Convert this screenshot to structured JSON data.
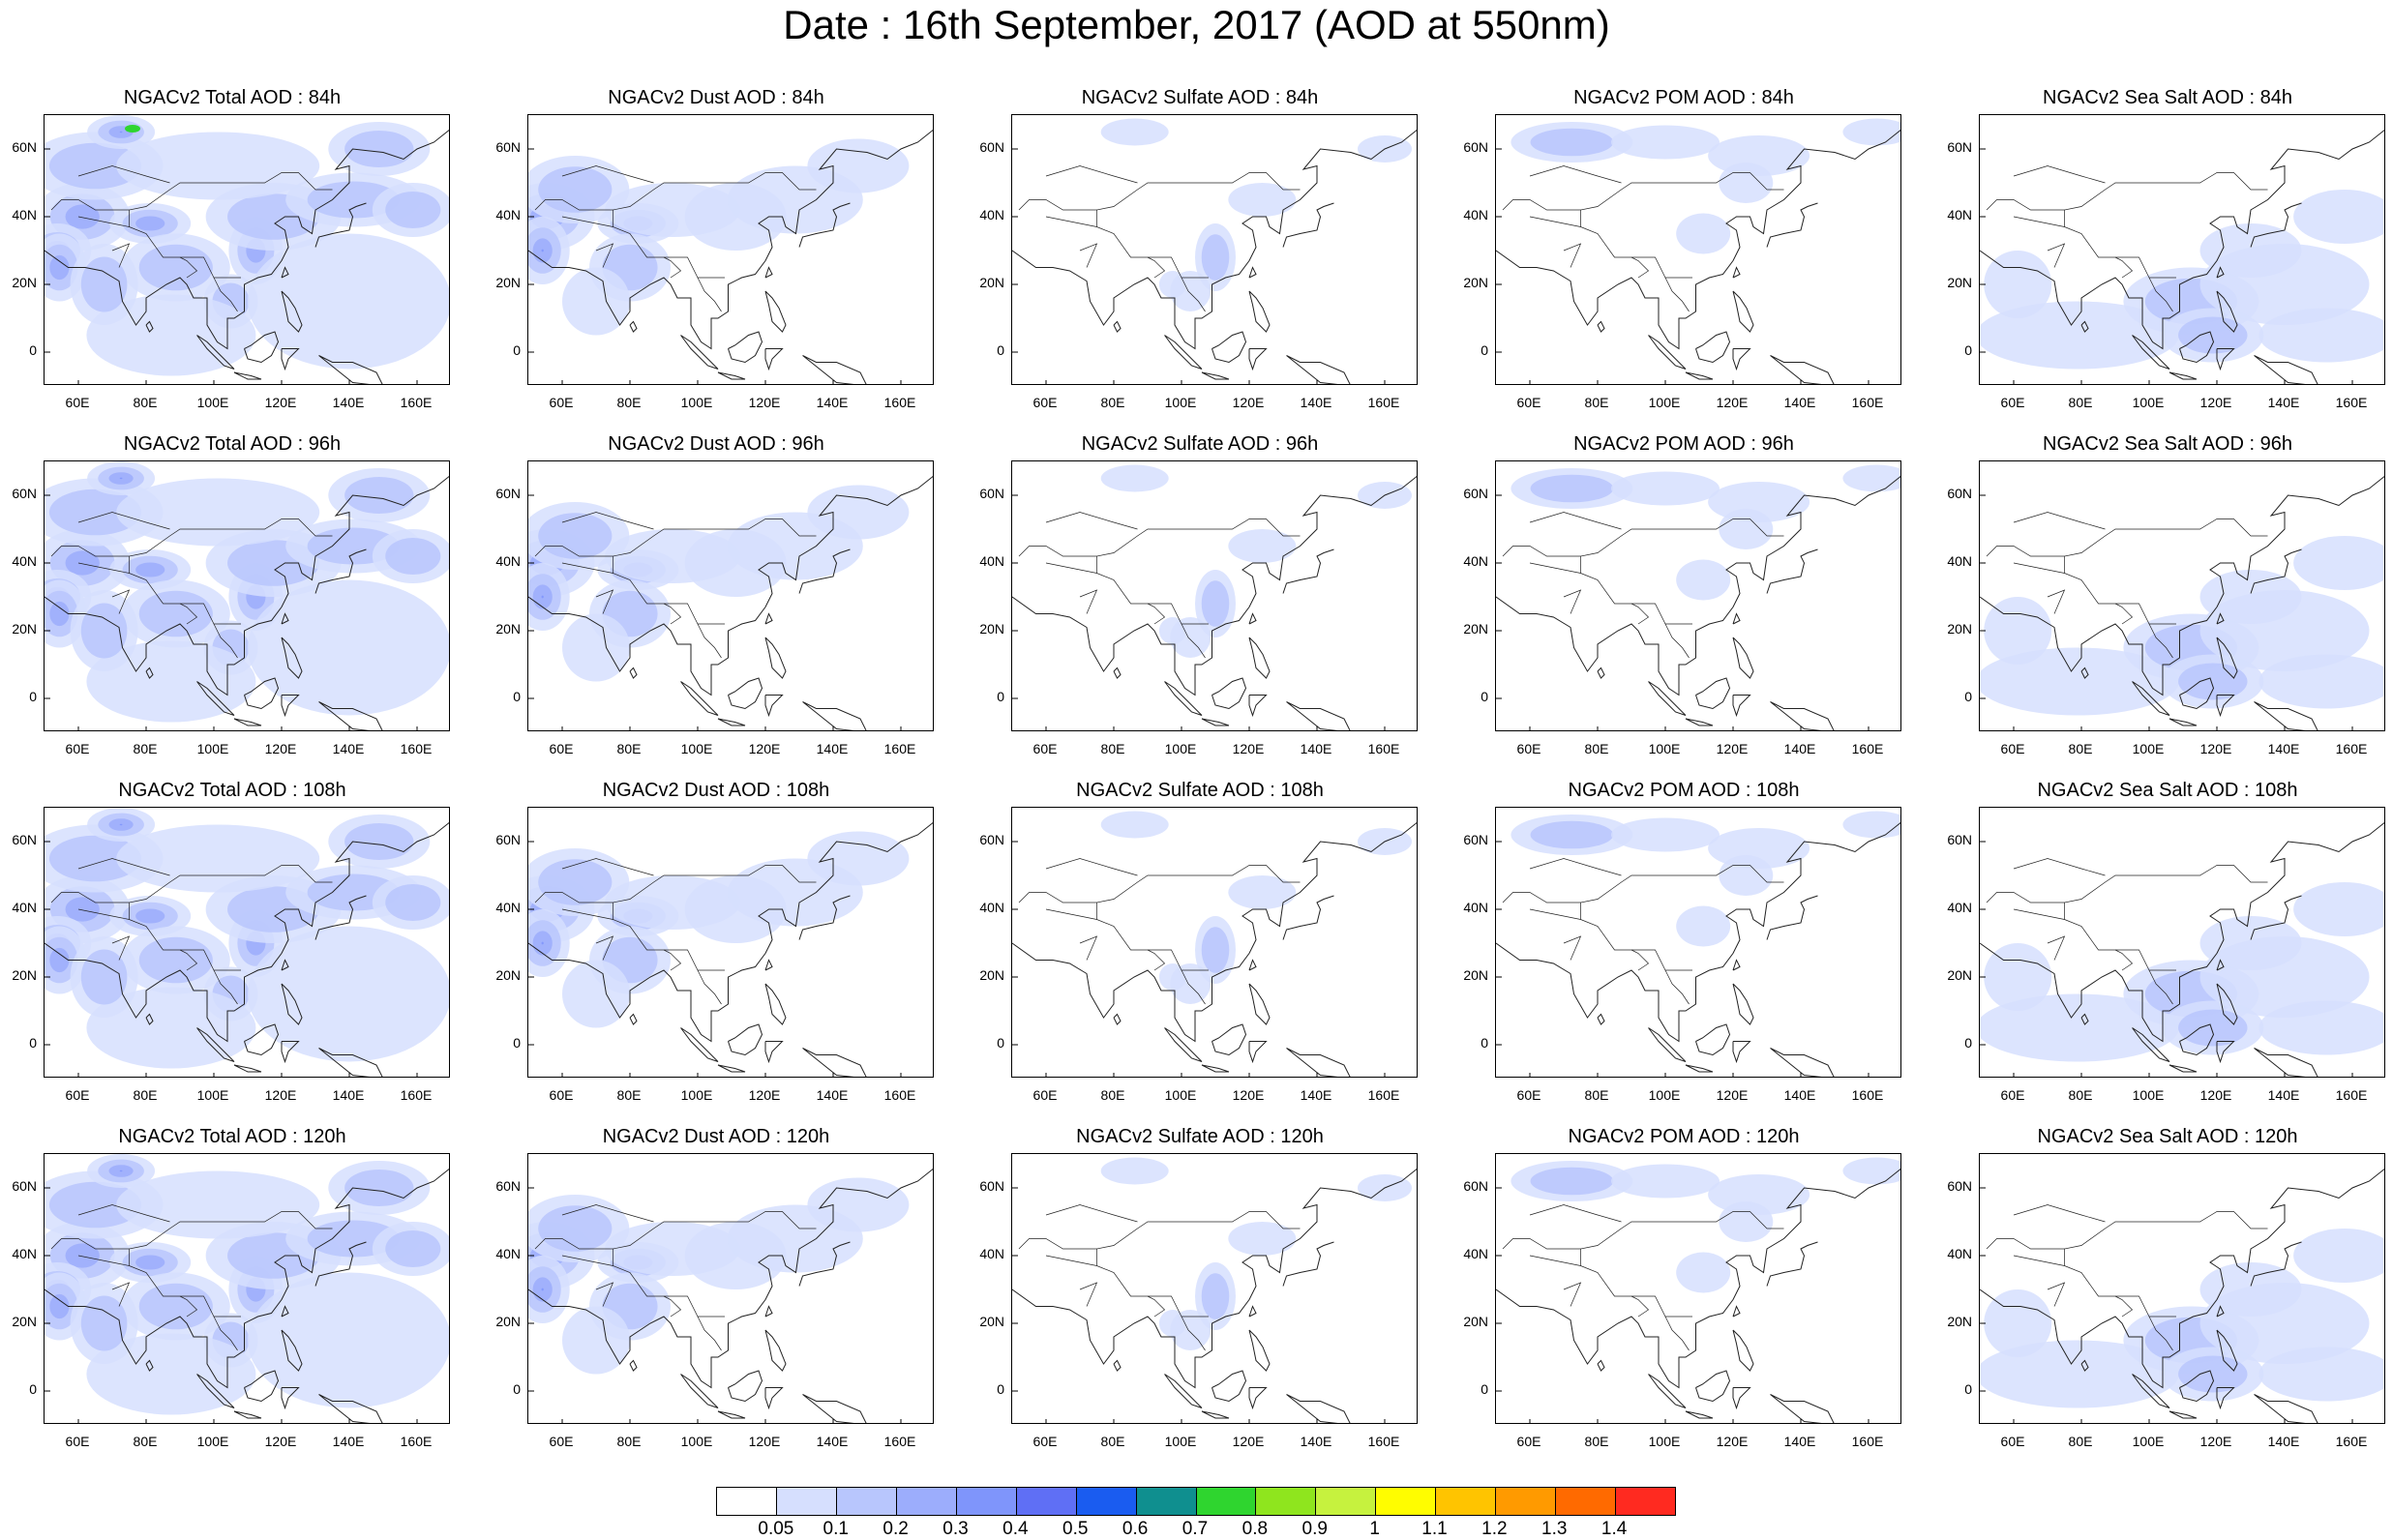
{
  "title": "Date : 16th September, 2017 (AOD at 550nm)",
  "y_axis_labels": [
    "60N",
    "40N",
    "20N",
    "0"
  ],
  "x_axis_labels": [
    "60E",
    "80E",
    "100E",
    "120E",
    "140E",
    "160E"
  ],
  "colorbar": {
    "colors": [
      "#ffffff",
      "#d6dffe",
      "#b8c6fd",
      "#9cadfc",
      "#7f95fb",
      "#5f6ff5",
      "#1a5cf0",
      "#0f8f8f",
      "#2fd52f",
      "#8fe51e",
      "#c6f23e",
      "#fffd00",
      "#ffc400",
      "#ff9a00",
      "#ff6a00",
      "#ff2a20"
    ],
    "labels": [
      "0.05",
      "0.1",
      "0.2",
      "0.3",
      "0.4",
      "0.5",
      "0.6",
      "0.7",
      "0.8",
      "0.9",
      "1",
      "1.1",
      "1.2",
      "1.3",
      "1.4"
    ]
  },
  "panels": [
    {
      "title": "NGACv2 Total AOD : 84h",
      "type": "total"
    },
    {
      "title": "NGACv2 Dust AOD : 84h",
      "type": "dust"
    },
    {
      "title": "NGACv2 Sulfate AOD : 84h",
      "type": "sulfate"
    },
    {
      "title": "NGACv2 POM AOD : 84h",
      "type": "pom"
    },
    {
      "title": "NGACv2 Sea Salt AOD : 84h",
      "type": "seasalt"
    },
    {
      "title": "NGACv2 Total AOD : 96h",
      "type": "total"
    },
    {
      "title": "NGACv2 Dust AOD : 96h",
      "type": "dust"
    },
    {
      "title": "NGACv2 Sulfate AOD : 96h",
      "type": "sulfate"
    },
    {
      "title": "NGACv2 POM AOD : 96h",
      "type": "pom"
    },
    {
      "title": "NGACv2 Sea Salt AOD : 96h",
      "type": "seasalt"
    },
    {
      "title": "NGACv2 Total AOD : 108h",
      "type": "total"
    },
    {
      "title": "NGACv2 Dust AOD : 108h",
      "type": "dust"
    },
    {
      "title": "NGACv2 Sulfate AOD : 108h",
      "type": "sulfate"
    },
    {
      "title": "NGACv2 POM AOD : 108h",
      "type": "pom"
    },
    {
      "title": "NGACv2 Sea Salt AOD : 108h",
      "type": "seasalt"
    },
    {
      "title": "NGACv2 Total AOD : 120h",
      "type": "total"
    },
    {
      "title": "NGACv2 Dust AOD : 120h",
      "type": "dust"
    },
    {
      "title": "NGACv2 Sulfate AOD : 120h",
      "type": "sulfate"
    },
    {
      "title": "NGACv2 POM AOD : 120h",
      "type": "pom"
    },
    {
      "title": "NGACv2 Sea Salt  AOD : 120h",
      "type": "seasalt"
    }
  ]
}
